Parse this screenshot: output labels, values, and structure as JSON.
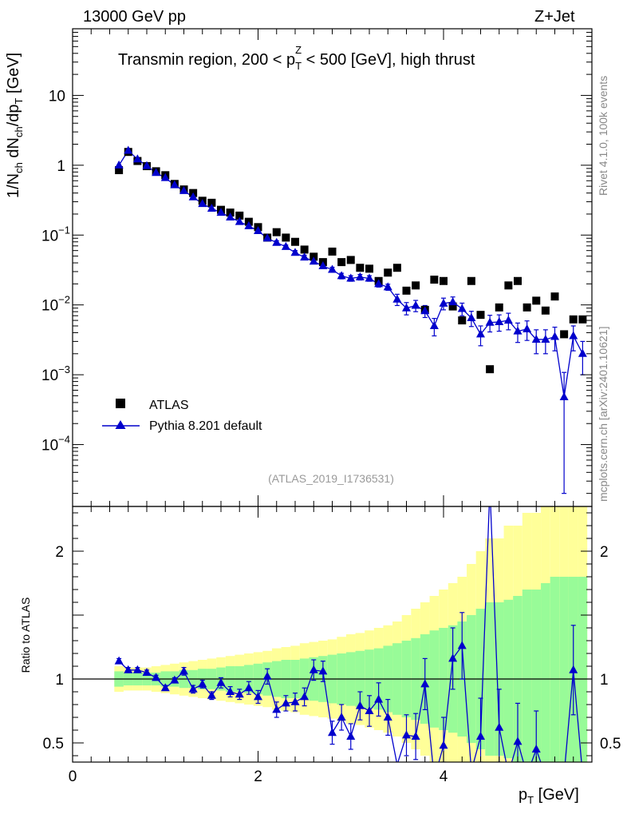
{
  "header": {
    "left": "13000 GeV pp",
    "right": "Z+Jet"
  },
  "side": {
    "rivet": "Rivet 4.1.0,  100k events",
    "mcplots": "mcplots.cern.ch [arXiv:2401.10621]"
  },
  "chart_data": [
    {
      "type": "scatter",
      "panel": "main",
      "title": "Transmin region, 200 < p_T^Z < 500 [GeV], high thrust",
      "title_parts": {
        "a": "Transmin region, 200 < p",
        "sub": "T",
        "sup": "Z",
        "b": " < 500 [GeV], high thrust"
      },
      "ylabel": "1/N_ch dN_ch/dp_T [GeV]",
      "ylabel_parts": {
        "a": "1/N",
        "s1": "ch",
        "b": " dN",
        "s2": "ch",
        "c": "/dp",
        "s3": "T",
        "d": " [GeV]"
      },
      "yscale": "log",
      "ylim": [
        1.3e-05,
        90
      ],
      "xlim": [
        0,
        5.6
      ],
      "yticks": [
        {
          "label": "10",
          "value": 10
        },
        {
          "label": "1",
          "value": 1
        },
        {
          "label": "10",
          "exp": "−1",
          "value": 0.1
        },
        {
          "label": "10",
          "exp": "−2",
          "value": 0.01
        },
        {
          "label": "10",
          "exp": "−3",
          "value": 0.001
        },
        {
          "label": "10",
          "exp": "−4",
          "value": 0.0001
        }
      ],
      "reference_tag": "(ATLAS_2019_I1736531)",
      "legend": [
        {
          "name": "ATLAS",
          "marker": "square",
          "color": "#000000"
        },
        {
          "name": "Pythia 8.201 default",
          "marker": "triangle",
          "color": "#0000cc"
        }
      ],
      "x": [
        0.5,
        0.6,
        0.7,
        0.8,
        0.9,
        1.0,
        1.1,
        1.2,
        1.3,
        1.4,
        1.5,
        1.6,
        1.7,
        1.8,
        1.9,
        2.0,
        2.1,
        2.2,
        2.3,
        2.4,
        2.5,
        2.6,
        2.7,
        2.8,
        2.9,
        3.0,
        3.1,
        3.2,
        3.3,
        3.4,
        3.5,
        3.6,
        3.7,
        3.8,
        3.9,
        4.0,
        4.1,
        4.2,
        4.3,
        4.4,
        4.5,
        4.6,
        4.7,
        4.8,
        4.9,
        5.0,
        5.1,
        5.2,
        5.3,
        5.4,
        5.5
      ],
      "series": [
        {
          "name": "ATLAS",
          "values": [
            0.85,
            1.55,
            1.15,
            0.97,
            0.82,
            0.72,
            0.54,
            0.45,
            0.4,
            0.31,
            0.29,
            0.23,
            0.21,
            0.19,
            0.155,
            0.13,
            0.092,
            0.11,
            0.092,
            0.08,
            0.062,
            0.049,
            0.041,
            0.058,
            0.041,
            0.044,
            0.034,
            0.033,
            0.022,
            0.029,
            0.034,
            0.016,
            0.019,
            0.0085,
            0.023,
            0.022,
            0.0095,
            0.006,
            0.022,
            0.0072,
            0.0012,
            0.0092,
            0.019,
            0.022,
            0.0092,
            0.0115,
            0.0083,
            0.0132,
            0.0038,
            0.0062,
            0.0062
          ]
        },
        {
          "name": "Pythia 8.201 default",
          "values": [
            1.0,
            1.62,
            1.22,
            0.98,
            0.78,
            0.66,
            0.52,
            0.43,
            0.35,
            0.28,
            0.24,
            0.21,
            0.18,
            0.155,
            0.135,
            0.115,
            0.09,
            0.078,
            0.068,
            0.056,
            0.048,
            0.042,
            0.036,
            0.032,
            0.026,
            0.024,
            0.025,
            0.024,
            0.02,
            0.018,
            0.012,
            0.009,
            0.0098,
            0.0082,
            0.005,
            0.0105,
            0.011,
            0.0088,
            0.0065,
            0.0038,
            0.0056,
            0.0057,
            0.006,
            0.0042,
            0.0045,
            0.0032,
            0.0032,
            0.0035,
            0.00048,
            0.0036,
            0.002
          ],
          "err_low": [
            0.05,
            0.06,
            0.05,
            0.04,
            0.03,
            0.03,
            0.02,
            0.02,
            0.015,
            0.012,
            0.01,
            0.01,
            0.008,
            0.007,
            0.006,
            0.006,
            0.005,
            0.005,
            0.004,
            0.004,
            0.0035,
            0.003,
            0.0028,
            0.0026,
            0.0024,
            0.0022,
            0.0023,
            0.0022,
            0.002,
            0.0018,
            0.0022,
            0.0018,
            0.0018,
            0.0016,
            0.0014,
            0.002,
            0.002,
            0.0018,
            0.0016,
            0.0012,
            0.0015,
            0.0015,
            0.0016,
            0.0013,
            0.0014,
            0.0012,
            0.0012,
            0.0013,
            0.00046,
            0.0014,
            0.001
          ],
          "err_high": [
            0.05,
            0.06,
            0.05,
            0.04,
            0.03,
            0.03,
            0.02,
            0.02,
            0.015,
            0.012,
            0.01,
            0.01,
            0.008,
            0.007,
            0.006,
            0.006,
            0.005,
            0.005,
            0.004,
            0.004,
            0.0035,
            0.003,
            0.0028,
            0.0026,
            0.0024,
            0.0022,
            0.0023,
            0.0022,
            0.002,
            0.0018,
            0.0022,
            0.0018,
            0.0018,
            0.0016,
            0.0014,
            0.002,
            0.002,
            0.0018,
            0.0016,
            0.0012,
            0.0015,
            0.0015,
            0.0016,
            0.0013,
            0.0014,
            0.0012,
            0.0012,
            0.0013,
            0.0006,
            0.0014,
            0.001
          ]
        }
      ]
    },
    {
      "type": "line",
      "panel": "ratio",
      "ylabel": "Ratio to ATLAS",
      "xlabel": "p_T [GeV]",
      "xlabel_parts": {
        "a": "p",
        "sub": "T",
        "b": " [GeV]"
      },
      "xlim": [
        0,
        5.6
      ],
      "ylim": [
        0.35,
        2.35
      ],
      "xticks": [
        {
          "label": "0",
          "value": 0
        },
        {
          "label": "2",
          "value": 2
        },
        {
          "label": "4",
          "value": 4
        }
      ],
      "yticks": [
        {
          "label": "0.5",
          "value": 0.5
        },
        {
          "label": "1",
          "value": 1
        },
        {
          "label": "2",
          "value": 2
        }
      ],
      "band_colors": {
        "inner": "#98fb98",
        "outer": "#ffff99",
        "line": "#000000",
        "series": "#0000cc"
      },
      "x": [
        0.5,
        0.6,
        0.7,
        0.8,
        0.9,
        1.0,
        1.1,
        1.2,
        1.3,
        1.4,
        1.5,
        1.6,
        1.7,
        1.8,
        1.9,
        2.0,
        2.1,
        2.2,
        2.3,
        2.4,
        2.5,
        2.6,
        2.7,
        2.8,
        2.9,
        3.0,
        3.1,
        3.2,
        3.3,
        3.4,
        3.5,
        3.6,
        3.7,
        3.8,
        3.9,
        4.0,
        4.1,
        4.2,
        4.3,
        4.4,
        4.5,
        4.6,
        4.7,
        4.8,
        4.9,
        5.0,
        5.1,
        5.2,
        5.3,
        5.4,
        5.5
      ],
      "band_inner": [
        0.06,
        0.05,
        0.05,
        0.05,
        0.05,
        0.06,
        0.06,
        0.07,
        0.07,
        0.08,
        0.08,
        0.09,
        0.1,
        0.1,
        0.11,
        0.12,
        0.13,
        0.14,
        0.15,
        0.15,
        0.16,
        0.17,
        0.18,
        0.19,
        0.2,
        0.21,
        0.22,
        0.23,
        0.24,
        0.26,
        0.28,
        0.3,
        0.32,
        0.35,
        0.38,
        0.4,
        0.42,
        0.45,
        0.5,
        0.55,
        0.6,
        0.6,
        0.62,
        0.65,
        0.7,
        0.7,
        0.75,
        0.8,
        0.8,
        0.8,
        0.8
      ],
      "band_outer": [
        0.1,
        0.09,
        0.09,
        0.09,
        0.1,
        0.11,
        0.12,
        0.13,
        0.14,
        0.15,
        0.16,
        0.17,
        0.18,
        0.19,
        0.2,
        0.21,
        0.22,
        0.24,
        0.25,
        0.26,
        0.28,
        0.29,
        0.3,
        0.31,
        0.33,
        0.35,
        0.36,
        0.38,
        0.4,
        0.42,
        0.45,
        0.5,
        0.55,
        0.6,
        0.65,
        0.7,
        0.75,
        0.8,
        0.9,
        1.0,
        1.1,
        1.1,
        1.2,
        1.2,
        1.3,
        1.3,
        1.4,
        1.4,
        1.4,
        1.4,
        1.4
      ],
      "series": [
        {
          "name": "Pythia 8.201 default",
          "values": [
            1.14,
            1.07,
            1.07,
            1.05,
            1.01,
            0.93,
            0.99,
            1.06,
            0.92,
            0.96,
            0.87,
            0.97,
            0.9,
            0.88,
            0.93,
            0.86,
            1.02,
            0.76,
            0.81,
            0.82,
            0.86,
            1.07,
            1.06,
            0.58,
            0.7,
            0.55,
            0.79,
            0.75,
            0.84,
            0.7,
            0.33,
            0.56,
            0.55,
            0.96,
            0.22,
            0.48,
            1.16,
            1.26,
            0.28,
            0.55,
            2.5,
            0.62,
            0.26,
            0.51,
            0.25,
            0.45,
            0.24,
            0.32,
            0.25,
            1.07,
            0.25
          ],
          "err": [
            0.02,
            0.02,
            0.02,
            0.02,
            0.02,
            0.02,
            0.02,
            0.03,
            0.03,
            0.03,
            0.03,
            0.04,
            0.04,
            0.04,
            0.05,
            0.05,
            0.06,
            0.06,
            0.06,
            0.07,
            0.07,
            0.08,
            0.08,
            0.09,
            0.1,
            0.1,
            0.11,
            0.12,
            0.13,
            0.14,
            0.15,
            0.16,
            0.18,
            0.2,
            0.22,
            0.22,
            0.24,
            0.26,
            0.28,
            0.3,
            0.4,
            0.3,
            0.3,
            0.3,
            0.3,
            0.3,
            0.3,
            0.3,
            0.3,
            0.35,
            0.3
          ]
        }
      ]
    }
  ]
}
